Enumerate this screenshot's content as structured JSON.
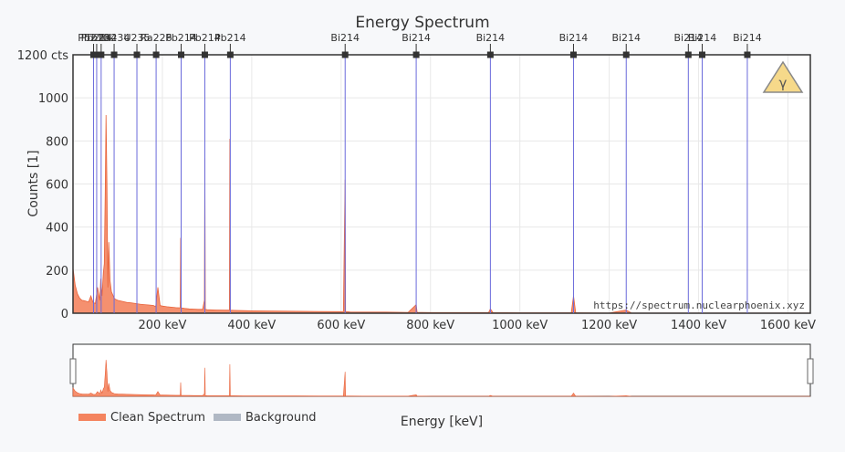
{
  "chart_data": {
    "type": "area",
    "title": "Energy Spectrum",
    "xlabel": "Energy [keV]",
    "ylabel": "Counts [1]",
    "xlim": [
      0,
      1650
    ],
    "ylim": [
      0,
      1200
    ],
    "x_ticks": [
      {
        "value": 200,
        "label": "200 keV"
      },
      {
        "value": 400,
        "label": "400 keV"
      },
      {
        "value": 600,
        "label": "600 keV"
      },
      {
        "value": 800,
        "label": "800 keV"
      },
      {
        "value": 1000,
        "label": "1000 keV"
      },
      {
        "value": 1200,
        "label": "1200 keV"
      },
      {
        "value": 1400,
        "label": "1400 keV"
      },
      {
        "value": 1600,
        "label": "1600 keV"
      }
    ],
    "y_ticks": [
      {
        "value": 0,
        "label": "0"
      },
      {
        "value": 200,
        "label": "200"
      },
      {
        "value": 400,
        "label": "400"
      },
      {
        "value": 600,
        "label": "600"
      },
      {
        "value": 800,
        "label": "800"
      },
      {
        "value": 1000,
        "label": "1000"
      },
      {
        "value": 1200,
        "label": "1200 cts"
      }
    ],
    "grid": true,
    "legend_position": "bottom-left",
    "series": [
      {
        "name": "Clean Spectrum",
        "color": "#f4845f",
        "x": [
          0,
          5,
          10,
          15,
          20,
          25,
          30,
          35,
          40,
          45,
          50,
          55,
          60,
          62,
          65,
          68,
          70,
          72,
          74,
          76,
          78,
          80,
          83,
          86,
          88,
          90,
          92,
          95,
          100,
          110,
          120,
          130,
          140,
          150,
          160,
          170,
          180,
          185,
          190,
          195,
          200,
          210,
          220,
          230,
          240,
          241,
          242,
          250,
          260,
          270,
          280,
          290,
          294,
          295,
          296,
          300,
          320,
          340,
          350,
          351,
          352,
          360,
          380,
          400,
          450,
          500,
          550,
          600,
          605,
          609,
          610,
          614,
          620,
          650,
          700,
          750,
          768,
          770,
          780,
          800,
          900,
          930,
          934,
          940,
          1000,
          1100,
          1115,
          1120,
          1125,
          1200,
          1238,
          1250,
          1300,
          1400,
          1500,
          1650
        ],
        "y": [
          210,
          130,
          90,
          70,
          60,
          58,
          55,
          52,
          80,
          50,
          45,
          120,
          60,
          160,
          80,
          190,
          230,
          560,
          920,
          600,
          120,
          330,
          150,
          100,
          90,
          80,
          70,
          65,
          60,
          55,
          50,
          48,
          45,
          42,
          40,
          38,
          36,
          30,
          120,
          35,
          33,
          30,
          28,
          26,
          25,
          350,
          25,
          22,
          20,
          19,
          18,
          18,
          60,
          720,
          18,
          16,
          15,
          14,
          14,
          810,
          14,
          13,
          12,
          11,
          10,
          9,
          8,
          7,
          8,
          620,
          8,
          7,
          6,
          5,
          5,
          4,
          40,
          4,
          4,
          3,
          3,
          3,
          20,
          3,
          2,
          2,
          2,
          80,
          2,
          1,
          15,
          1,
          1,
          1,
          1,
          1
        ]
      },
      {
        "name": "Background",
        "color": "#b0b8c4",
        "x": [],
        "y": []
      }
    ],
    "isotope_markers": [
      {
        "energy": 46,
        "label": "Pb210"
      },
      {
        "energy": 53,
        "label": "Pb214"
      },
      {
        "energy": 63,
        "label": "Th234"
      },
      {
        "energy": 92,
        "label": "Th234"
      },
      {
        "energy": 143,
        "label": "U235"
      },
      {
        "energy": 186,
        "label": "Ra226"
      },
      {
        "energy": 242,
        "label": "Pb214"
      },
      {
        "energy": 295,
        "label": "Pb214"
      },
      {
        "energy": 352,
        "label": "Pb214"
      },
      {
        "energy": 609,
        "label": "Bi214"
      },
      {
        "energy": 768,
        "label": "Bi214"
      },
      {
        "energy": 934,
        "label": "Bi214"
      },
      {
        "energy": 1120,
        "label": "Bi214"
      },
      {
        "energy": 1238,
        "label": "Bi214"
      },
      {
        "energy": 1377,
        "label": "Bi214"
      },
      {
        "energy": 1408,
        "label": "Bi214"
      },
      {
        "energy": 1509,
        "label": "Bi214"
      }
    ],
    "watermark": "https://spectrum.nuclearphoenix.xyz",
    "logo_text": "γ"
  }
}
